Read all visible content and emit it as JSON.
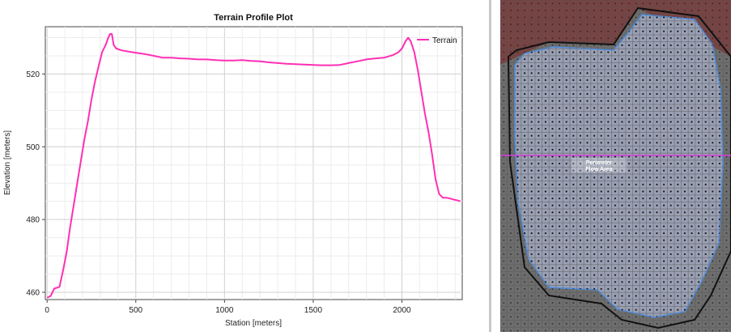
{
  "chart_data": {
    "type": "line",
    "title": "Terrain Profile Plot",
    "xlabel": "Station [meters]",
    "ylabel": "Elevation [meters]",
    "xlim": [
      -10,
      2340
    ],
    "ylim": [
      458,
      533
    ],
    "xticks": [
      0,
      500,
      1000,
      1500,
      2000
    ],
    "xtick_labels": [
      "0",
      "500",
      "1000",
      "1500",
      "2000"
    ],
    "yticks": [
      460,
      480,
      500,
      520
    ],
    "ytick_labels": [
      "460",
      "480",
      "500",
      "520"
    ],
    "grid": true,
    "legend_position": "top-right",
    "series": [
      {
        "name": "Terrain",
        "color": "#ff2fb4",
        "x": [
          0,
          20,
          40,
          70,
          90,
          110,
          130,
          150,
          170,
          190,
          210,
          230,
          250,
          270,
          290,
          310,
          330,
          345,
          355,
          365,
          375,
          390,
          420,
          480,
          550,
          600,
          650,
          700,
          750,
          800,
          850,
          900,
          950,
          1000,
          1050,
          1100,
          1150,
          1200,
          1250,
          1300,
          1350,
          1400,
          1450,
          1500,
          1550,
          1600,
          1650,
          1700,
          1750,
          1800,
          1850,
          1900,
          1950,
          1980,
          2000,
          2020,
          2035,
          2050,
          2070,
          2090,
          2110,
          2130,
          2150,
          2170,
          2190,
          2210,
          2230,
          2250,
          2270,
          2290,
          2310,
          2330
        ],
        "y": [
          458.5,
          459,
          461,
          461.5,
          466,
          471,
          478,
          484,
          490,
          496,
          502,
          507,
          513,
          518,
          522,
          526,
          528,
          530,
          531,
          531,
          528,
          527,
          526.5,
          526,
          525.5,
          525,
          524.5,
          524.5,
          524.3,
          524.2,
          524,
          524,
          523.8,
          523.7,
          523.7,
          523.8,
          523.6,
          523.5,
          523.2,
          523,
          522.8,
          522.7,
          522.6,
          522.5,
          522.4,
          522.4,
          522.5,
          523,
          523.5,
          524,
          524.3,
          524.5,
          525.2,
          526,
          527,
          529,
          530,
          529,
          526,
          521,
          515,
          509,
          504,
          498,
          491,
          487,
          486,
          486,
          485.8,
          485.5,
          485.3,
          485
        ]
      }
    ]
  },
  "legend": {
    "terrain_label": "Terrain"
  },
  "map": {
    "colors": {
      "terrain_bg": "#6e6e6e",
      "terrain_red": "#7a3c3c",
      "area_fill": "#9aa0b4",
      "area_outline": "#4f8fe0",
      "boundary": "#111111",
      "profile_line": "#d63ad6"
    },
    "label_line1": "Perimeter",
    "label_line2": "Flow Area"
  }
}
